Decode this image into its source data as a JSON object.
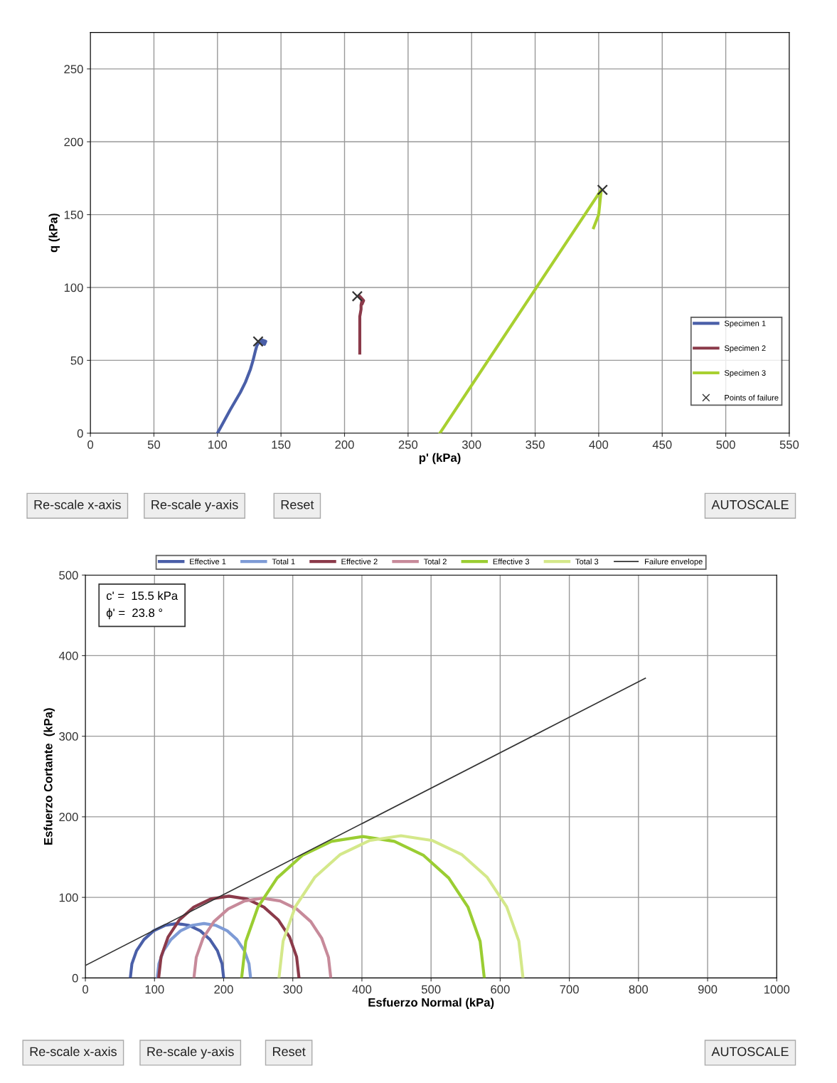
{
  "chart_data": [
    {
      "type": "line",
      "xlabel": "p' (kPa)",
      "ylabel": "q (kPa)",
      "xlim": [
        0,
        550
      ],
      "xticks": [
        0,
        50,
        100,
        150,
        200,
        250,
        300,
        350,
        400,
        450,
        500,
        550
      ],
      "ylim": [
        0,
        275
      ],
      "yticks": [
        0,
        50,
        100,
        150,
        200,
        250
      ],
      "grid": true,
      "legend": "bottom right",
      "series": [
        {
          "name": "Specimen 1",
          "color": "#4a5fa8",
          "x": [
            100,
            110,
            118,
            122,
            126,
            128,
            130,
            131,
            133,
            135,
            138,
            137,
            135
          ],
          "values": [
            0,
            16,
            28,
            35,
            44,
            50,
            57,
            60,
            63,
            64,
            63,
            61,
            62
          ]
        },
        {
          "name": "Specimen 2",
          "color": "#8b3a4a",
          "x": [
            212,
            212,
            212,
            213,
            213,
            214,
            212,
            215,
            214
          ],
          "values": [
            55,
            70,
            80,
            85,
            88,
            92,
            94,
            91,
            89
          ]
        },
        {
          "name": "Specimen 3",
          "color": "#a8d030",
          "x": [
            275,
            402,
            400,
            396
          ],
          "values": [
            0,
            167,
            150,
            141
          ]
        },
        {
          "name": "Points of failure",
          "type": "scatter",
          "marker": "cross",
          "color": "#333333",
          "x": [
            132,
            210,
            403
          ],
          "values": [
            63,
            94,
            167
          ]
        }
      ],
      "annotations": [
        "Re-scale x-axis",
        "Re-scale y-axis",
        "Reset",
        "AUTOSCALE"
      ]
    },
    {
      "type": "line",
      "xlabel": "Esfuerzo Normal (kPa)",
      "ylabel": "Esfuerzo Cortante  (kPa)",
      "xlim": [
        0,
        1000
      ],
      "xticks": [
        0,
        100,
        200,
        300,
        400,
        500,
        600,
        700,
        800,
        900,
        1000
      ],
      "ylim": [
        0,
        500
      ],
      "yticks": [
        0,
        100,
        200,
        300,
        400,
        500
      ],
      "grid": true,
      "legend": "top",
      "series": [
        {
          "name": "Effective 1",
          "color": "#4a5fa8",
          "x": [
            65,
            67.3,
            74,
            84.8,
            98.7,
            115,
            132.5,
            150,
            166.3,
            180.2,
            191,
            197.7,
            200
          ],
          "values": [
            0,
            17.5,
            33.8,
            47.7,
            58.5,
            65.2,
            67.5,
            65.2,
            58.5,
            47.7,
            33.8,
            17.5,
            0
          ]
        },
        {
          "name": "Total 1",
          "color": "#7e9bd6",
          "x": [
            104,
            106.3,
            113,
            123.8,
            137.7,
            154,
            171.5,
            189,
            205.3,
            219.2,
            230,
            236.7,
            239
          ],
          "values": [
            0,
            17.5,
            33.8,
            47.7,
            58.5,
            65.2,
            67.5,
            65.2,
            58.5,
            47.7,
            33.8,
            17.5,
            0
          ]
        },
        {
          "name": "Effective 2",
          "color": "#8b3a4a",
          "x": [
            106,
            109.5,
            119.6,
            135.7,
            156.7,
            181.2,
            207.5,
            233.8,
            258.3,
            279.3,
            295.4,
            305.5,
            309
          ],
          "values": [
            0,
            26.3,
            50.8,
            71.8,
            87.9,
            98.0,
            101.5,
            98.0,
            87.9,
            71.8,
            50.8,
            26.3,
            0
          ]
        },
        {
          "name": "Total 2",
          "color": "#c78a9a",
          "x": [
            157,
            160.4,
            170.3,
            186,
            206.5,
            230.4,
            256,
            281.6,
            305.5,
            326,
            341.7,
            351.6,
            355
          ],
          "values": [
            0,
            25.6,
            49.5,
            70,
            85.7,
            95.6,
            99,
            95.6,
            85.7,
            70,
            49.5,
            25.6,
            0
          ]
        },
        {
          "name": "Effective 3",
          "color": "#9acd32",
          "x": [
            226,
            232,
            249.5,
            277.4,
            313.7,
            356.1,
            401.5,
            446.9,
            489.3,
            525.6,
            553.5,
            571,
            577
          ],
          "values": [
            0,
            45.4,
            87.8,
            124.1,
            152,
            169.5,
            175.5,
            169.5,
            152,
            124.1,
            87.8,
            45.4,
            0
          ]
        },
        {
          "name": "Total 3",
          "color": "#d4e88a",
          "x": [
            280,
            286,
            303.6,
            331.7,
            368.2,
            410.8,
            456.5,
            502.2,
            544.8,
            581.3,
            609.4,
            627,
            633
          ],
          "values": [
            0,
            45.7,
            88.3,
            124.8,
            152.9,
            170.5,
            176.5,
            170.5,
            152.9,
            124.8,
            88.3,
            45.7,
            0
          ]
        },
        {
          "name": "Failure envelope",
          "color": "#333333",
          "x": [
            0,
            810
          ],
          "values": [
            15.5,
            372
          ]
        }
      ],
      "annotations": [
        "c' =  15.5 kPa\nϕ' =  23.8 °",
        "Re-scale x-axis",
        "Re-scale y-axis",
        "Reset",
        "AUTOSCALE"
      ]
    }
  ]
}
